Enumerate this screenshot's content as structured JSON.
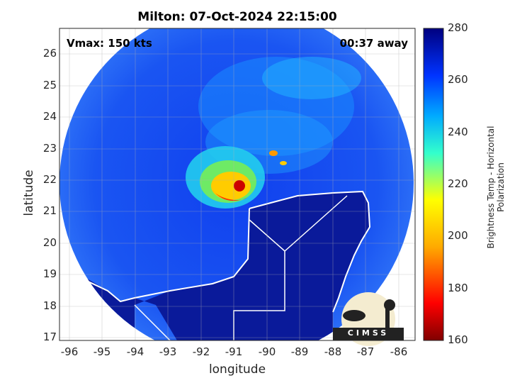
{
  "title": "Milton: 07-Oct-2024 22:15:00",
  "annotations": {
    "vmax": "Vmax: 150 kts",
    "time_away": "00:37 away"
  },
  "axes": {
    "xlabel": "longitude",
    "ylabel": "latitude",
    "xticks": [
      "-96",
      "-95",
      "-94",
      "-93",
      "-92",
      "-91",
      "-90",
      "-89",
      "-88",
      "-87",
      "-86"
    ],
    "yticks": [
      "26",
      "25",
      "24",
      "23",
      "22",
      "21",
      "20",
      "19",
      "18",
      "17"
    ],
    "xlim": [
      -96.3,
      -85.5
    ],
    "ylim": [
      16.8,
      26.8
    ]
  },
  "colorbar": {
    "label": "Brightness Temp - Horizontal Polarization",
    "ticks": [
      "280",
      "260",
      "240",
      "220",
      "200",
      "180",
      "160"
    ],
    "range": [
      160,
      280
    ]
  },
  "storm_center": {
    "lon": -90.8,
    "lat": 21.8
  },
  "logo_text": "CIMSS",
  "colors": {
    "background_cold": "#00008b",
    "ocean": "#1e5cf0",
    "eye": "#cc0000"
  }
}
